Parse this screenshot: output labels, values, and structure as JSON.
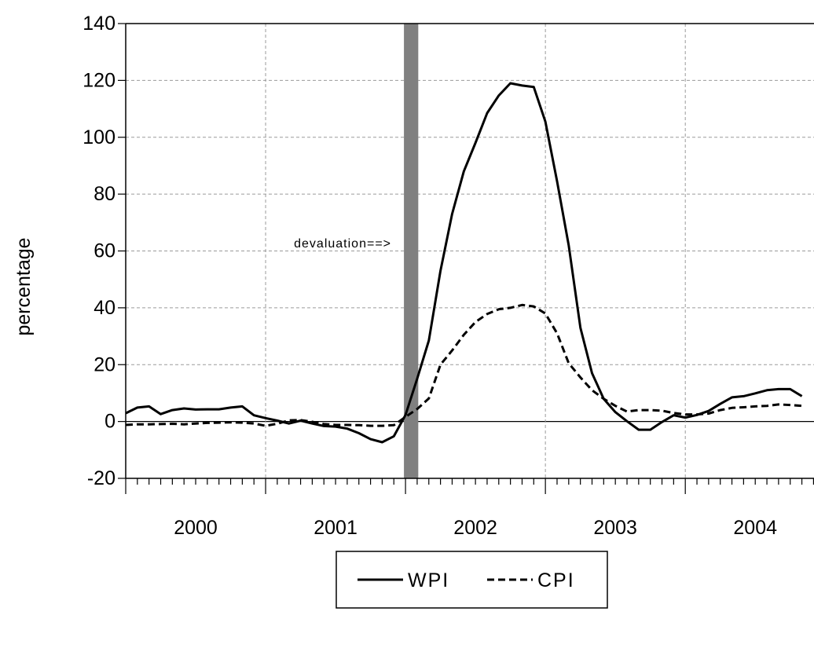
{
  "chart_data": {
    "type": "line",
    "title": "",
    "xlabel": "",
    "ylabel": "percentage",
    "ylim": [
      -20,
      140
    ],
    "xlim": [
      2000.0,
      2005.0
    ],
    "yticks": [
      "140",
      "120",
      "100",
      "80",
      "60",
      "40",
      "20",
      "0",
      "-20"
    ],
    "ytick_values": [
      140,
      120,
      100,
      80,
      60,
      40,
      20,
      0,
      -20
    ],
    "xtick_labels": [
      "2000",
      "2001",
      "2002",
      "2003",
      "2004"
    ],
    "grid": true,
    "legend": "bottom-center",
    "annotation": {
      "text": "devaluation==>",
      "x": 2002.0
    },
    "shaded_band": {
      "from": 2002.0,
      "to": 2002.08
    },
    "series": [
      {
        "name": "WPI",
        "style": "solid",
        "x": [
          2000.0,
          2000.0833,
          2000.1667,
          2000.25,
          2000.3333,
          2000.4167,
          2000.5,
          2000.5833,
          2000.6667,
          2000.75,
          2000.8333,
          2000.9167,
          2001.0,
          2001.0833,
          2001.1667,
          2001.25,
          2001.3333,
          2001.4167,
          2001.5,
          2001.5833,
          2001.6667,
          2001.75,
          2001.8333,
          2001.9167,
          2002.0,
          2002.0833,
          2002.1667,
          2002.25,
          2002.3333,
          2002.4167,
          2002.5,
          2002.5833,
          2002.6667,
          2002.75,
          2002.8333,
          2002.9167,
          2003.0,
          2003.0833,
          2003.1667,
          2003.25,
          2003.3333,
          2003.4167,
          2003.5,
          2003.5833,
          2003.6667,
          2003.75,
          2003.8333,
          2003.9167,
          2004.0,
          2004.0833,
          2004.1667,
          2004.25,
          2004.3333,
          2004.4167,
          2004.5,
          2004.5833,
          2004.6667,
          2004.75,
          2004.8333,
          2004.9167
        ],
        "values": [
          2.9,
          4.9,
          5.3,
          2.6,
          4.0,
          4.6,
          4.2,
          4.3,
          4.3,
          4.9,
          5.3,
          2.2,
          1.2,
          0.3,
          -0.7,
          0.3,
          -0.7,
          -1.6,
          -1.8,
          -2.5,
          -4.1,
          -6.2,
          -7.3,
          -5.2,
          2.3,
          15.0,
          28.5,
          53.0,
          73.0,
          88.0,
          98.0,
          108.5,
          114.7,
          119.0,
          118.2,
          117.7,
          105.5,
          84.5,
          62.0,
          33.0,
          17.0,
          8.0,
          3.3,
          0.1,
          -2.9,
          -2.9,
          -0.2,
          2.2,
          1.4,
          2.3,
          3.7,
          6.2,
          8.5,
          8.9,
          9.9,
          11.0,
          11.4,
          11.4,
          8.9,
          null
        ]
      },
      {
        "name": "CPI",
        "style": "dashed",
        "x": [
          2000.0,
          2000.0833,
          2000.1667,
          2000.25,
          2000.3333,
          2000.4167,
          2000.5,
          2000.5833,
          2000.6667,
          2000.75,
          2000.8333,
          2000.9167,
          2001.0,
          2001.0833,
          2001.1667,
          2001.25,
          2001.3333,
          2001.4167,
          2001.5,
          2001.5833,
          2001.6667,
          2001.75,
          2001.8333,
          2001.9167,
          2002.0,
          2002.0833,
          2002.1667,
          2002.25,
          2002.3333,
          2002.4167,
          2002.5,
          2002.5833,
          2002.6667,
          2002.75,
          2002.8333,
          2002.9167,
          2003.0,
          2003.0833,
          2003.1667,
          2003.25,
          2003.3333,
          2003.4167,
          2003.5,
          2003.5833,
          2003.6667,
          2003.75,
          2003.8333,
          2003.9167,
          2004.0,
          2004.0833,
          2004.1667,
          2004.25,
          2004.3333,
          2004.4167,
          2004.5,
          2004.5833,
          2004.6667,
          2004.75,
          2004.8333,
          2004.9167
        ],
        "values": [
          -1.2,
          -1.0,
          -1.0,
          -0.9,
          -0.8,
          -1.0,
          -0.7,
          -0.5,
          -0.4,
          -0.3,
          -0.4,
          -0.7,
          -1.5,
          -0.8,
          0.4,
          0.5,
          -0.1,
          -0.9,
          -1.2,
          -1.2,
          -1.3,
          -1.5,
          -1.5,
          -1.3,
          1.6,
          4.4,
          8.1,
          20.0,
          25.0,
          30.5,
          35.0,
          37.8,
          39.5,
          40.0,
          41.0,
          40.5,
          38.0,
          31.0,
          20.5,
          15.5,
          11.0,
          8.0,
          5.5,
          3.5,
          4.0,
          4.0,
          3.8,
          3.0,
          2.5,
          2.5,
          2.8,
          4.0,
          4.8,
          5.0,
          5.3,
          5.5,
          6.0,
          5.8,
          5.5,
          null
        ]
      }
    ]
  }
}
